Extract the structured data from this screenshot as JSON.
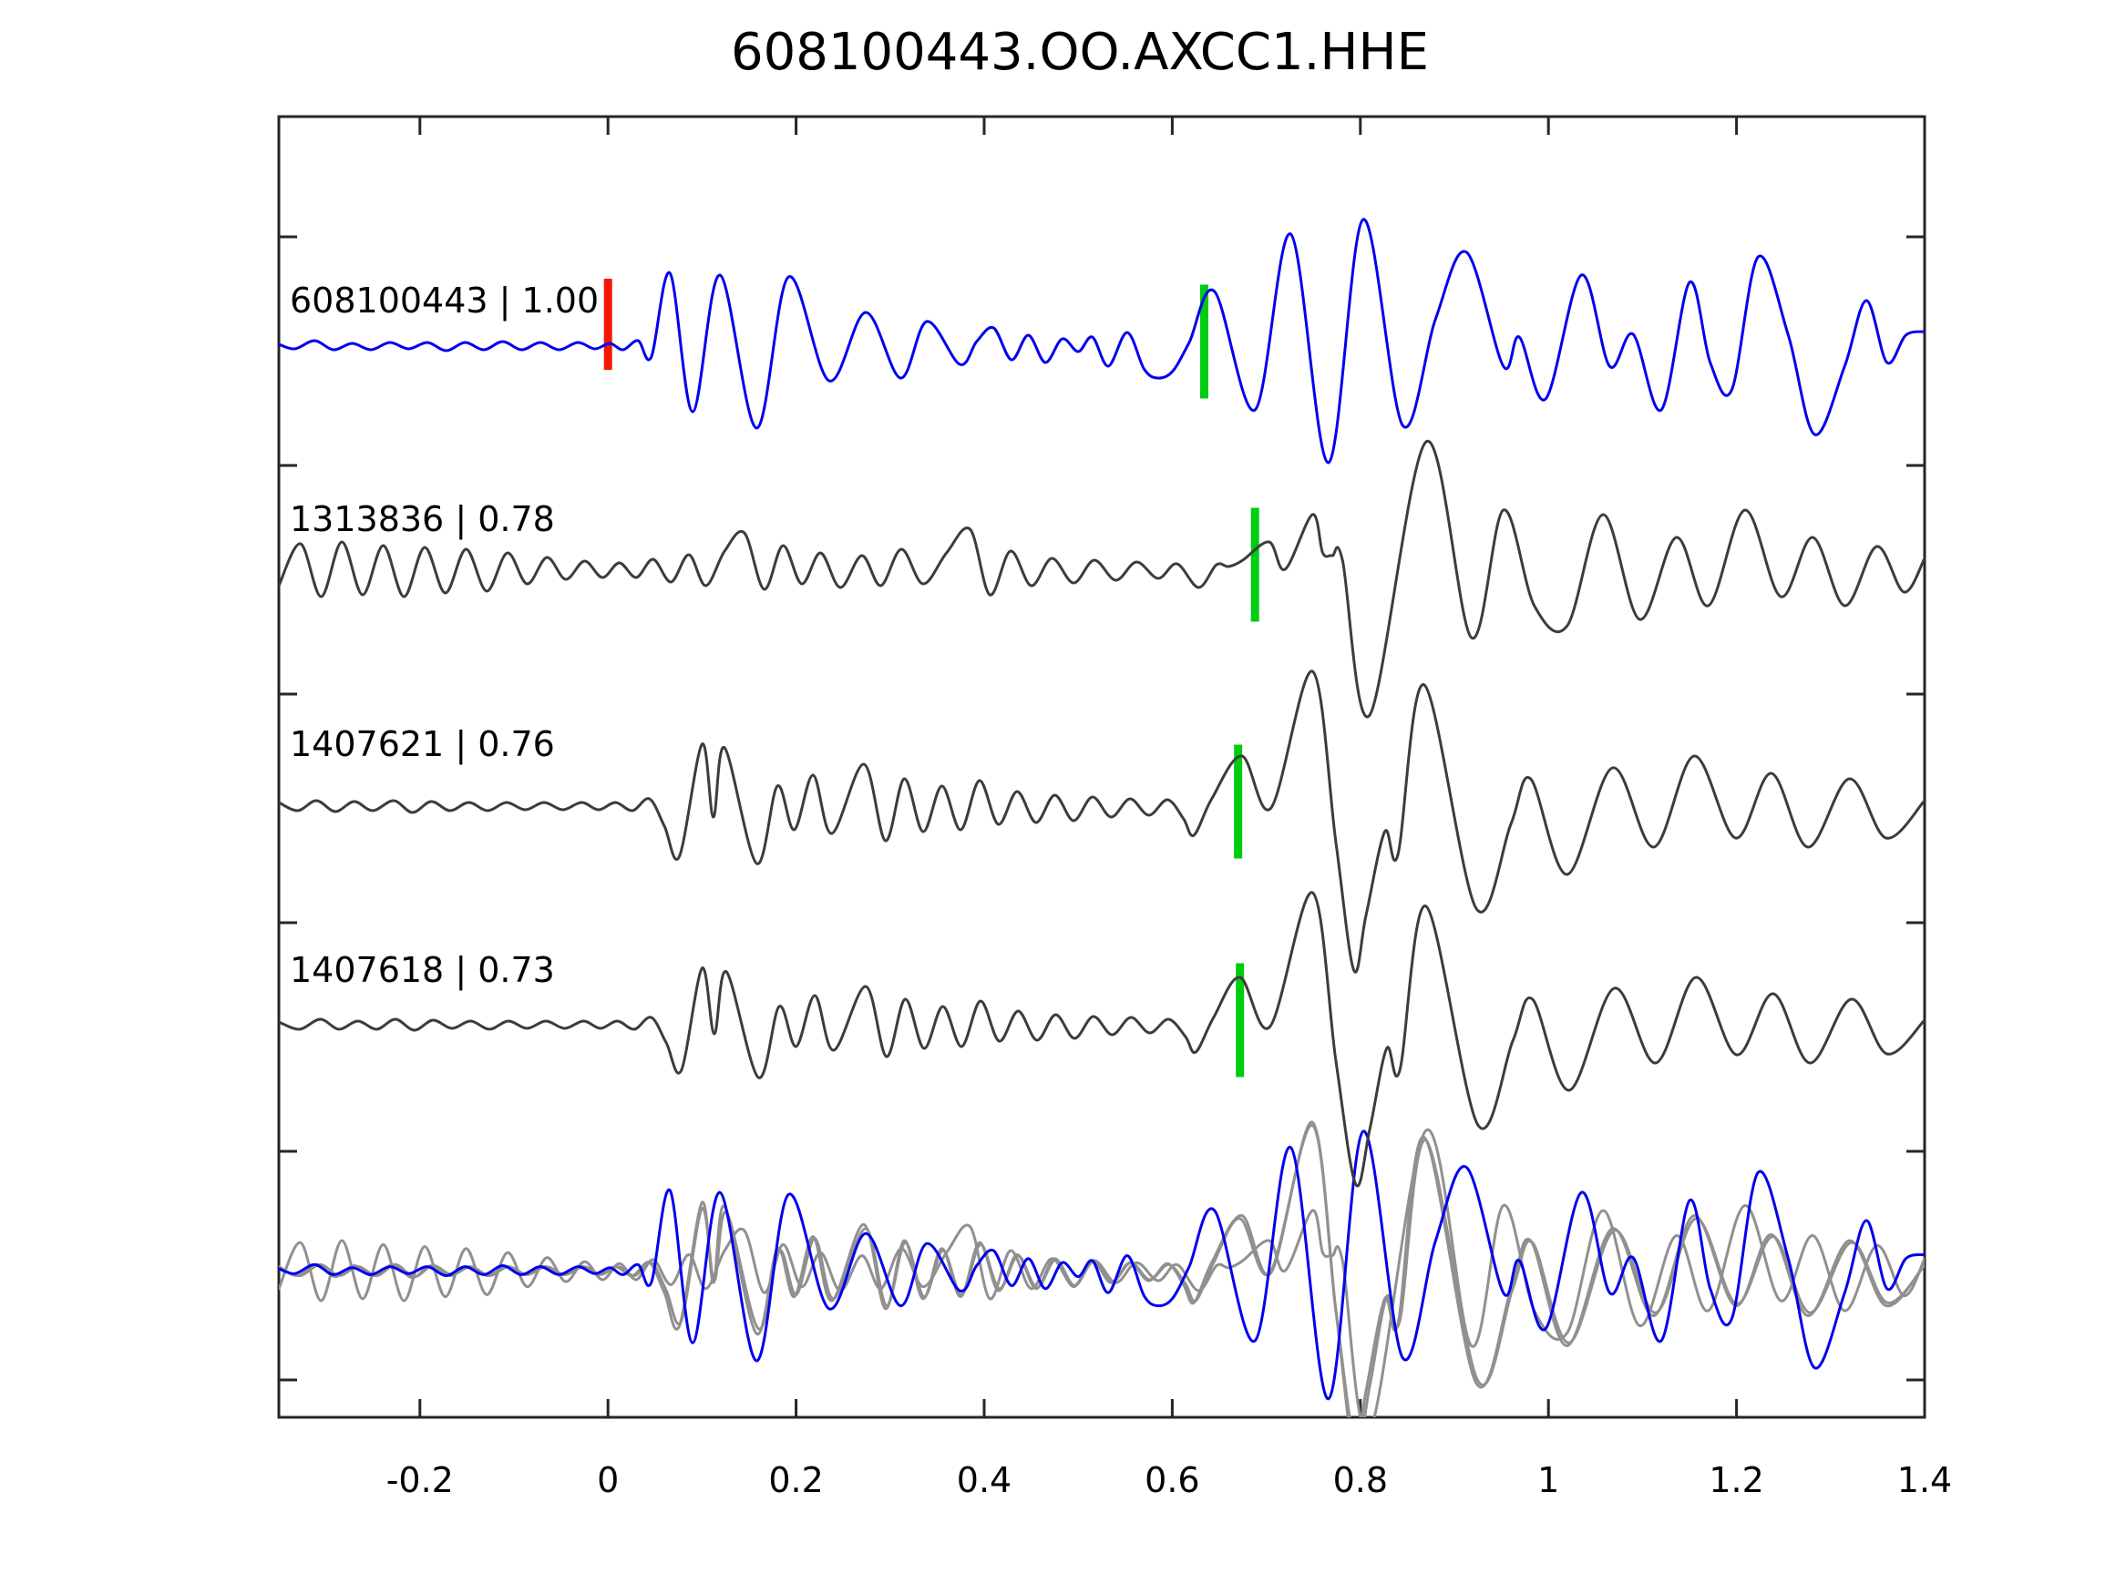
{
  "title": "608100443.OO.AXCC1.HHE",
  "colors": {
    "template_blue": "#0000EE",
    "event_gray": "#3C3C3C",
    "overlay_gray": "#909090",
    "pick_green": "#00CC11",
    "origin_red": "#F21707",
    "axis": "#262626",
    "text": "#000000",
    "background": "#FFFFFF"
  },
  "chart_data": {
    "type": "line",
    "title": "608100443.OO.AXCC1.HHE",
    "xlabel": "",
    "ylabel": "",
    "xlim": [
      -0.35,
      1.4
    ],
    "x_ticks": [
      -0.2,
      0,
      0.2,
      0.4,
      0.6,
      0.8,
      1,
      1.2,
      1.4
    ],
    "x_tick_labels": [
      "-0.2",
      "0",
      "0.2",
      "0.4",
      "0.6",
      "0.8",
      "1",
      "1.2",
      "1.4"
    ],
    "y_tick_count": 6,
    "grid": false,
    "legend": "none",
    "traces": [
      {
        "id": "608100443",
        "label": "608100443 | 1.00",
        "correlation": 1.0,
        "color_role": "template_blue",
        "origin_marker": {
          "t": 0.0,
          "color_role": "origin_red"
        },
        "pick_marker": {
          "t": 0.634,
          "color_role": "pick_green"
        },
        "points": [
          [
            -0.35,
            2
          ],
          [
            -0.333,
            -3
          ],
          [
            -0.312,
            6
          ],
          [
            -0.292,
            -4
          ],
          [
            -0.272,
            3
          ],
          [
            -0.252,
            -4
          ],
          [
            -0.232,
            4
          ],
          [
            -0.212,
            -3
          ],
          [
            -0.192,
            4
          ],
          [
            -0.172,
            -5
          ],
          [
            -0.152,
            4
          ],
          [
            -0.132,
            -4
          ],
          [
            -0.112,
            5
          ],
          [
            -0.092,
            -4
          ],
          [
            -0.072,
            4
          ],
          [
            -0.052,
            -4
          ],
          [
            -0.032,
            4
          ],
          [
            -0.014,
            -3
          ],
          [
            0.002,
            3
          ],
          [
            0.016,
            -4
          ],
          [
            0.032,
            6
          ],
          [
            0.046,
            -12
          ],
          [
            0.066,
            80
          ],
          [
            0.09,
            -72
          ],
          [
            0.119,
            78
          ],
          [
            0.158,
            -90
          ],
          [
            0.192,
            76
          ],
          [
            0.235,
            -38
          ],
          [
            0.274,
            37
          ],
          [
            0.311,
            -35
          ],
          [
            0.339,
            27
          ],
          [
            0.374,
            -20
          ],
          [
            0.392,
            5
          ],
          [
            0.41,
            20
          ],
          [
            0.429,
            -15
          ],
          [
            0.447,
            12
          ],
          [
            0.465,
            -18
          ],
          [
            0.483,
            8
          ],
          [
            0.5,
            -6
          ],
          [
            0.515,
            10
          ],
          [
            0.532,
            -22
          ],
          [
            0.552,
            15
          ],
          [
            0.57,
            -25
          ],
          [
            0.584,
            -35
          ],
          [
            0.6,
            -28
          ],
          [
            0.618,
            4
          ],
          [
            0.645,
            60
          ],
          [
            0.688,
            -70
          ],
          [
            0.726,
            123
          ],
          [
            0.766,
            -128
          ],
          [
            0.803,
            139
          ],
          [
            0.845,
            -87
          ],
          [
            0.88,
            30
          ],
          [
            0.913,
            103
          ],
          [
            0.952,
            -22
          ],
          [
            0.969,
            10
          ],
          [
            0.997,
            -58
          ],
          [
            1.035,
            78
          ],
          [
            1.065,
            -22
          ],
          [
            1.09,
            13
          ],
          [
            1.12,
            -70
          ],
          [
            1.15,
            70
          ],
          [
            1.172,
            -18
          ],
          [
            1.195,
            -48
          ],
          [
            1.223,
            98
          ],
          [
            1.255,
            12
          ],
          [
            1.283,
            -97
          ],
          [
            1.315,
            -22
          ],
          [
            1.338,
            50
          ],
          [
            1.36,
            -18
          ],
          [
            1.38,
            12
          ],
          [
            1.4,
            16
          ]
        ]
      },
      {
        "id": "1313836",
        "label": "1313836 | 0.78",
        "correlation": 0.78,
        "color_role": "event_gray",
        "pick_marker": {
          "t": 0.688,
          "color_role": "pick_green"
        },
        "points": [
          [
            -0.35,
            -18
          ],
          [
            -0.327,
            28
          ],
          [
            -0.305,
            -30
          ],
          [
            -0.283,
            30
          ],
          [
            -0.261,
            -28
          ],
          [
            -0.239,
            26
          ],
          [
            -0.217,
            -30
          ],
          [
            -0.195,
            24
          ],
          [
            -0.173,
            -26
          ],
          [
            -0.151,
            22
          ],
          [
            -0.129,
            -24
          ],
          [
            -0.107,
            18
          ],
          [
            -0.086,
            -16
          ],
          [
            -0.065,
            13
          ],
          [
            -0.045,
            -11
          ],
          [
            -0.025,
            9
          ],
          [
            -0.006,
            -9
          ],
          [
            0.012,
            7
          ],
          [
            0.03,
            -9
          ],
          [
            0.048,
            11
          ],
          [
            0.067,
            -14
          ],
          [
            0.086,
            16
          ],
          [
            0.104,
            -18
          ],
          [
            0.124,
            20
          ],
          [
            0.145,
            40
          ],
          [
            0.166,
            -22
          ],
          [
            0.186,
            26
          ],
          [
            0.206,
            -16
          ],
          [
            0.226,
            18
          ],
          [
            0.247,
            -20
          ],
          [
            0.27,
            15
          ],
          [
            0.29,
            -18
          ],
          [
            0.312,
            22
          ],
          [
            0.335,
            -16
          ],
          [
            0.36,
            18
          ],
          [
            0.385,
            44
          ],
          [
            0.406,
            -28
          ],
          [
            0.428,
            20
          ],
          [
            0.45,
            -18
          ],
          [
            0.472,
            12
          ],
          [
            0.495,
            -15
          ],
          [
            0.517,
            10
          ],
          [
            0.54,
            -12
          ],
          [
            0.562,
            8
          ],
          [
            0.585,
            -10
          ],
          [
            0.605,
            6
          ],
          [
            0.628,
            -20
          ],
          [
            0.647,
            5
          ],
          [
            0.66,
            3
          ],
          [
            0.675,
            10
          ],
          [
            0.703,
            30
          ],
          [
            0.72,
            0
          ],
          [
            0.749,
            60
          ],
          [
            0.76,
            18
          ],
          [
            0.77,
            15
          ],
          [
            0.781,
            10
          ],
          [
            0.81,
            -160
          ],
          [
            0.87,
            140
          ],
          [
            0.918,
            -75
          ],
          [
            0.952,
            65
          ],
          [
            0.985,
            -40
          ],
          [
            1.02,
            -62
          ],
          [
            1.058,
            60
          ],
          [
            1.097,
            -55
          ],
          [
            1.136,
            35
          ],
          [
            1.17,
            -40
          ],
          [
            1.209,
            65
          ],
          [
            1.247,
            -30
          ],
          [
            1.281,
            35
          ],
          [
            1.315,
            -40
          ],
          [
            1.349,
            25
          ],
          [
            1.378,
            -25
          ],
          [
            1.4,
            12
          ]
        ]
      },
      {
        "id": "1407621",
        "label": "1407621 | 0.76",
        "correlation": 0.76,
        "color_role": "event_gray",
        "pick_marker": {
          "t": 0.67,
          "color_role": "pick_green"
        },
        "points": [
          [
            -0.35,
            4
          ],
          [
            -0.33,
            -5
          ],
          [
            -0.31,
            6
          ],
          [
            -0.29,
            -6
          ],
          [
            -0.27,
            5
          ],
          [
            -0.25,
            -5
          ],
          [
            -0.228,
            6
          ],
          [
            -0.208,
            -7
          ],
          [
            -0.188,
            5
          ],
          [
            -0.168,
            -5
          ],
          [
            -0.148,
            4
          ],
          [
            -0.128,
            -5
          ],
          [
            -0.108,
            4
          ],
          [
            -0.088,
            -4
          ],
          [
            -0.068,
            4
          ],
          [
            -0.048,
            -4
          ],
          [
            -0.028,
            4
          ],
          [
            -0.01,
            -4
          ],
          [
            0.008,
            4
          ],
          [
            0.026,
            -5
          ],
          [
            0.044,
            8
          ],
          [
            0.06,
            -22
          ],
          [
            0.076,
            -55
          ],
          [
            0.1,
            68
          ],
          [
            0.112,
            -12
          ],
          [
            0.124,
            64
          ],
          [
            0.158,
            -63
          ],
          [
            0.18,
            22
          ],
          [
            0.198,
            -26
          ],
          [
            0.218,
            34
          ],
          [
            0.238,
            -30
          ],
          [
            0.272,
            46
          ],
          [
            0.295,
            -38
          ],
          [
            0.315,
            30
          ],
          [
            0.335,
            -28
          ],
          [
            0.355,
            22
          ],
          [
            0.375,
            -26
          ],
          [
            0.395,
            28
          ],
          [
            0.415,
            -20
          ],
          [
            0.435,
            16
          ],
          [
            0.455,
            -18
          ],
          [
            0.475,
            12
          ],
          [
            0.495,
            -16
          ],
          [
            0.515,
            10
          ],
          [
            0.535,
            -12
          ],
          [
            0.555,
            8
          ],
          [
            0.575,
            -10
          ],
          [
            0.595,
            7
          ],
          [
            0.612,
            -14
          ],
          [
            0.623,
            -32
          ],
          [
            0.642,
            8
          ],
          [
            0.674,
            55
          ],
          [
            0.705,
            -2
          ],
          [
            0.749,
            148
          ],
          [
            0.774,
            -40
          ],
          [
            0.793,
            -180
          ],
          [
            0.806,
            -120
          ],
          [
            0.826,
            -28
          ],
          [
            0.84,
            -53
          ],
          [
            0.868,
            133
          ],
          [
            0.923,
            -112
          ],
          [
            0.96,
            -20
          ],
          [
            0.981,
            30
          ],
          [
            1.02,
            -75
          ],
          [
            1.068,
            42
          ],
          [
            1.112,
            -45
          ],
          [
            1.155,
            55
          ],
          [
            1.199,
            -35
          ],
          [
            1.237,
            36
          ],
          [
            1.276,
            -45
          ],
          [
            1.32,
            30
          ],
          [
            1.359,
            -35
          ],
          [
            1.4,
            6
          ]
        ]
      },
      {
        "id": "1407618",
        "label": "1407618 | 0.73",
        "correlation": 0.73,
        "color_role": "event_gray",
        "pick_marker": {
          "t": 0.672,
          "color_role": "pick_green"
        },
        "points": [
          [
            -0.35,
            3
          ],
          [
            -0.328,
            -5
          ],
          [
            -0.306,
            6
          ],
          [
            -0.286,
            -5
          ],
          [
            -0.266,
            4
          ],
          [
            -0.246,
            -5
          ],
          [
            -0.226,
            6
          ],
          [
            -0.206,
            -6
          ],
          [
            -0.186,
            5
          ],
          [
            -0.166,
            -4
          ],
          [
            -0.146,
            4
          ],
          [
            -0.126,
            -5
          ],
          [
            -0.106,
            4
          ],
          [
            -0.086,
            -4
          ],
          [
            -0.066,
            4
          ],
          [
            -0.046,
            -4
          ],
          [
            -0.026,
            4
          ],
          [
            -0.008,
            -4
          ],
          [
            0.01,
            4
          ],
          [
            0.028,
            -5
          ],
          [
            0.046,
            8
          ],
          [
            0.062,
            -20
          ],
          [
            0.078,
            -50
          ],
          [
            0.1,
            62
          ],
          [
            0.113,
            -10
          ],
          [
            0.126,
            58
          ],
          [
            0.16,
            -58
          ],
          [
            0.182,
            20
          ],
          [
            0.2,
            -24
          ],
          [
            0.22,
            32
          ],
          [
            0.24,
            -28
          ],
          [
            0.274,
            42
          ],
          [
            0.296,
            -35
          ],
          [
            0.316,
            28
          ],
          [
            0.336,
            -26
          ],
          [
            0.356,
            20
          ],
          [
            0.376,
            -24
          ],
          [
            0.396,
            26
          ],
          [
            0.416,
            -18
          ],
          [
            0.436,
            15
          ],
          [
            0.456,
            -17
          ],
          [
            0.476,
            11
          ],
          [
            0.496,
            -15
          ],
          [
            0.516,
            9
          ],
          [
            0.536,
            -11
          ],
          [
            0.556,
            8
          ],
          [
            0.576,
            -9
          ],
          [
            0.596,
            6
          ],
          [
            0.614,
            -13
          ],
          [
            0.625,
            -30
          ],
          [
            0.644,
            8
          ],
          [
            0.672,
            52
          ],
          [
            0.704,
            -2
          ],
          [
            0.749,
            145
          ],
          [
            0.774,
            -40
          ],
          [
            0.795,
            -175
          ],
          [
            0.81,
            -115
          ],
          [
            0.828,
            -26
          ],
          [
            0.842,
            -50
          ],
          [
            0.87,
            130
          ],
          [
            0.925,
            -110
          ],
          [
            0.962,
            -18
          ],
          [
            0.983,
            28
          ],
          [
            1.022,
            -72
          ],
          [
            1.07,
            40
          ],
          [
            1.114,
            -42
          ],
          [
            1.157,
            52
          ],
          [
            1.2,
            -33
          ],
          [
            1.239,
            34
          ],
          [
            1.278,
            -42
          ],
          [
            1.322,
            28
          ],
          [
            1.36,
            -32
          ],
          [
            1.4,
            5
          ]
        ]
      }
    ],
    "overlay_row": {
      "id": "aligned-overlay",
      "description": "all four traces overplotted on one row",
      "gray_components": [
        1,
        2,
        3
      ],
      "blue_component": 0
    }
  }
}
